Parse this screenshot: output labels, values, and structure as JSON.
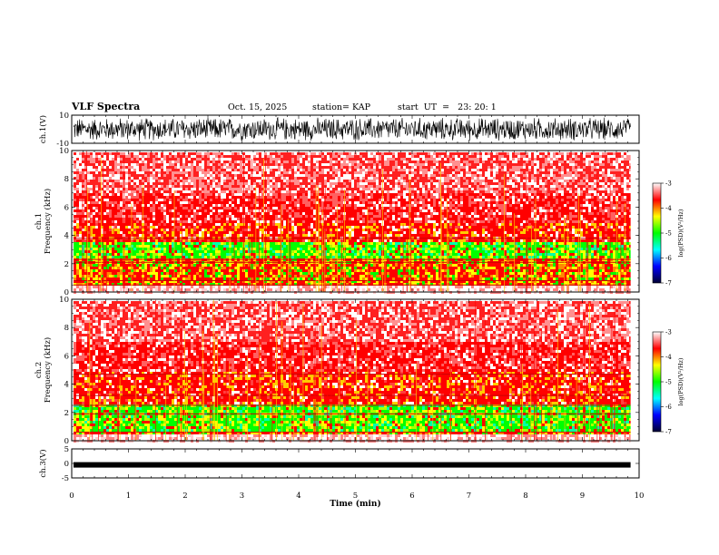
{
  "chart_data": {
    "type": "heatmap",
    "title": "VLF Spectra",
    "date": "Oct. 15, 2025",
    "station": "station= KAP",
    "start_ut": "start  UT  =   23: 20: 1",
    "xlabel": "Time  (min)",
    "xlim": [
      0,
      10
    ],
    "xticks": [
      "0",
      "1",
      "2",
      "3",
      "4",
      "5",
      "6",
      "7",
      "8",
      "9",
      "10"
    ],
    "data_end_min": 9.85,
    "panels": [
      {
        "id": "ch1-waveform",
        "type": "line",
        "ylabel": "ch.1(V)",
        "ylim": [
          -10,
          10
        ],
        "yticks": [
          "10",
          "-10"
        ],
        "amplitude_v": 9
      },
      {
        "id": "ch1-spectrogram",
        "type": "heatmap",
        "ylabel": "ch.1\nFrequency  (kHz)",
        "ylim": [
          0,
          10
        ],
        "yticks": [
          "0",
          "2",
          "4",
          "6",
          "8",
          "10"
        ],
        "colorbar": {
          "label": "log(PSD)(V²/Hz)",
          "range": [
            -7,
            -3
          ],
          "ticks": [
            "-3",
            "-4",
            "-5",
            "-6",
            "-7"
          ]
        }
      },
      {
        "id": "ch2-spectrogram",
        "type": "heatmap",
        "ylabel": "ch.2\nFrequency  (kHz)",
        "ylim": [
          0,
          10
        ],
        "yticks": [
          "0",
          "2",
          "4",
          "6",
          "8",
          "10"
        ],
        "colorbar": {
          "label": "log(PSD)(V²/Hz)",
          "range": [
            -7,
            -3
          ],
          "ticks": [
            "-3",
            "-4",
            "-5",
            "-6",
            "-7"
          ]
        }
      },
      {
        "id": "ch3-waveform",
        "type": "line",
        "ylabel": "ch.3(V)",
        "ylim": [
          -5,
          5
        ],
        "yticks": [
          "5",
          "0",
          "-5"
        ],
        "level_v": -0.5
      }
    ]
  },
  "colors": {
    "axis": "#000000",
    "colormap": [
      "#ffffff",
      "#ff0000",
      "#ffff00",
      "#00ff00",
      "#00ffff",
      "#0000ff",
      "#000033"
    ]
  }
}
